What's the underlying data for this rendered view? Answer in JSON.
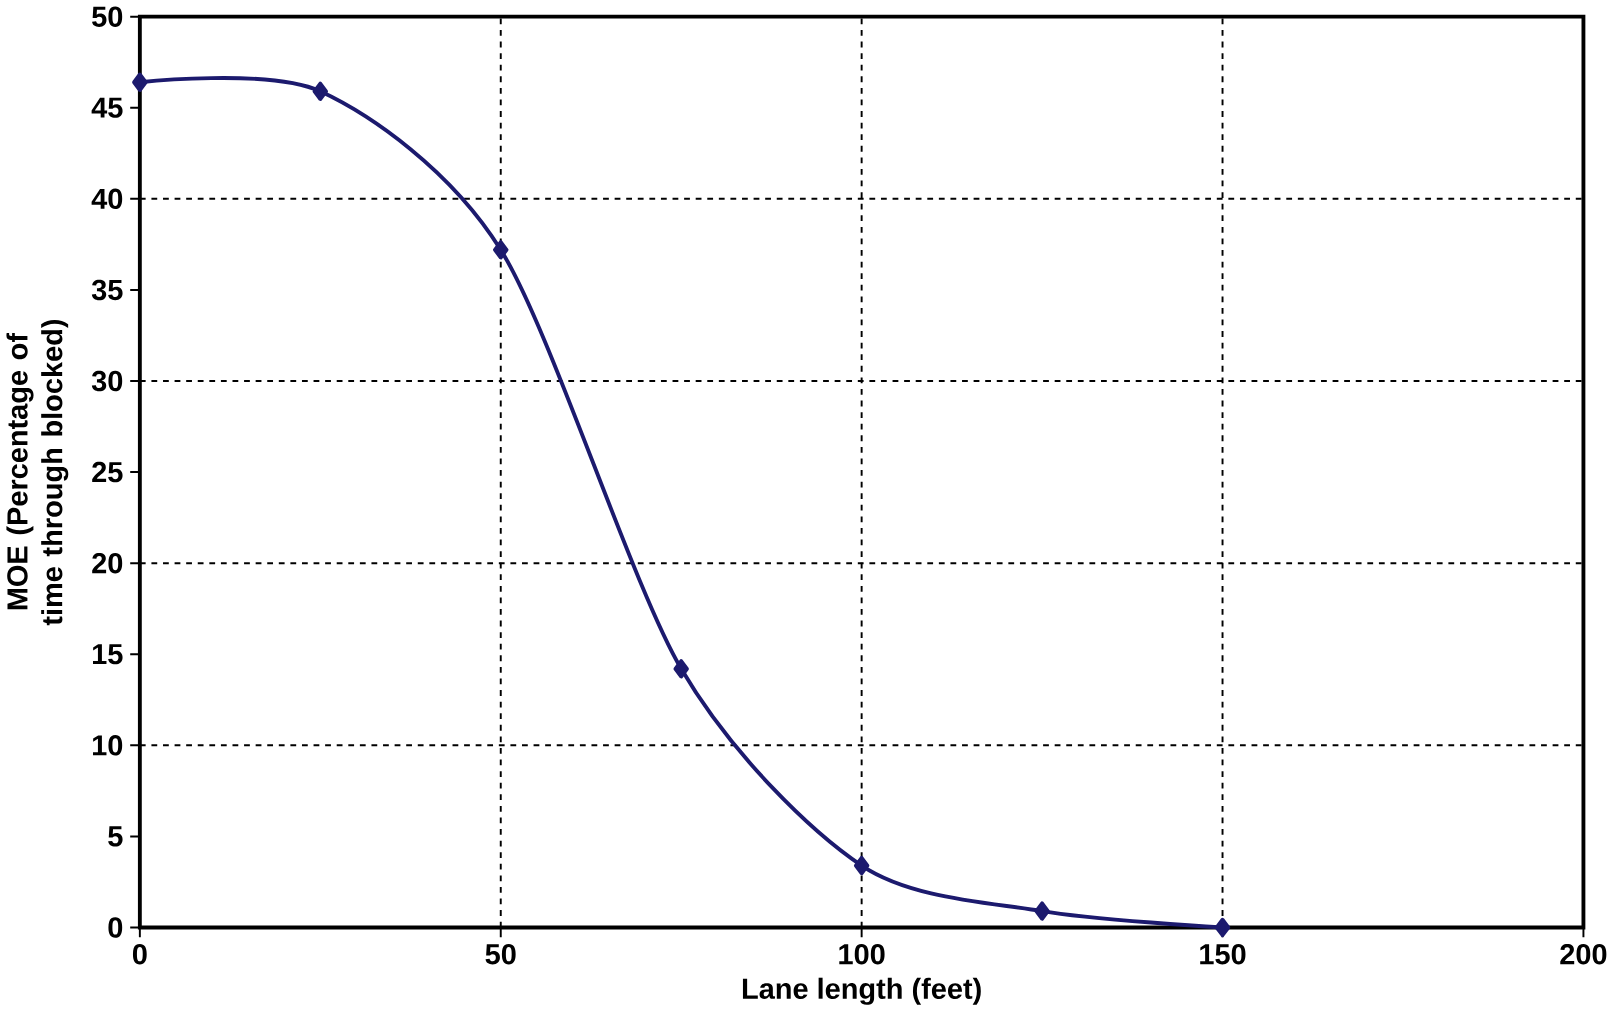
{
  "chart_data": {
    "type": "line",
    "xlabel": "Lane length (feet)",
    "ylabel": "MOE (Percentage of time through blocked)",
    "x": [
      0,
      25,
      50,
      75,
      100,
      125,
      150
    ],
    "series": [
      {
        "color": "#1c1a6e",
        "values": [
          46.4,
          45.9,
          37.2,
          14.2,
          3.4,
          0.9,
          0
        ]
      }
    ],
    "xlim": [
      0,
      200
    ],
    "xticks": [
      0,
      50,
      100,
      150,
      200
    ],
    "ylim": [
      0,
      50
    ],
    "yticks": [
      0,
      5,
      10,
      15,
      20,
      25,
      30,
      35,
      40,
      45,
      50
    ],
    "grid": true,
    "marker": "diamond",
    "line_style": "solid"
  }
}
